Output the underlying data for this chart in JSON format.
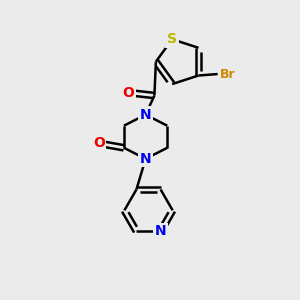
{
  "background_color": "#ebebeb",
  "bond_color": "#000000",
  "atom_colors": {
    "S": "#b8b800",
    "Br": "#cc8800",
    "N": "#0000ee",
    "O": "#ee0000",
    "C": "#000000"
  },
  "figsize": [
    3.0,
    3.0
  ],
  "dpi": 100
}
